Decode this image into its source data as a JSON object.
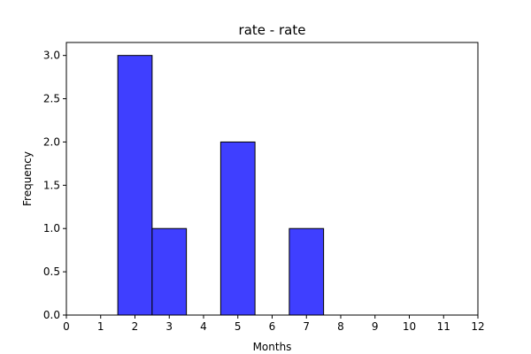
{
  "chart_data": {
    "type": "bar",
    "title": "rate - rate",
    "xlabel": "Months",
    "ylabel": "Frequency",
    "xlim": [
      0,
      12
    ],
    "ylim": [
      0,
      3.15
    ],
    "xticks": [
      0,
      1,
      2,
      3,
      4,
      5,
      6,
      7,
      8,
      9,
      10,
      11,
      12
    ],
    "yticks": [
      0.0,
      0.5,
      1.0,
      1.5,
      2.0,
      2.5,
      3.0
    ],
    "ytick_labels": [
      "0.0",
      "0.5",
      "1.0",
      "1.5",
      "2.0",
      "2.5",
      "3.0"
    ],
    "bins": [
      {
        "x_start": 1.5,
        "x_end": 2.5,
        "count": 3
      },
      {
        "x_start": 2.5,
        "x_end": 3.5,
        "count": 1
      },
      {
        "x_start": 4.5,
        "x_end": 5.5,
        "count": 2
      },
      {
        "x_start": 6.5,
        "x_end": 7.5,
        "count": 1
      }
    ],
    "bar_color": "#3f3fff",
    "edge_color": "#000000",
    "grid": false,
    "legend": "none"
  }
}
